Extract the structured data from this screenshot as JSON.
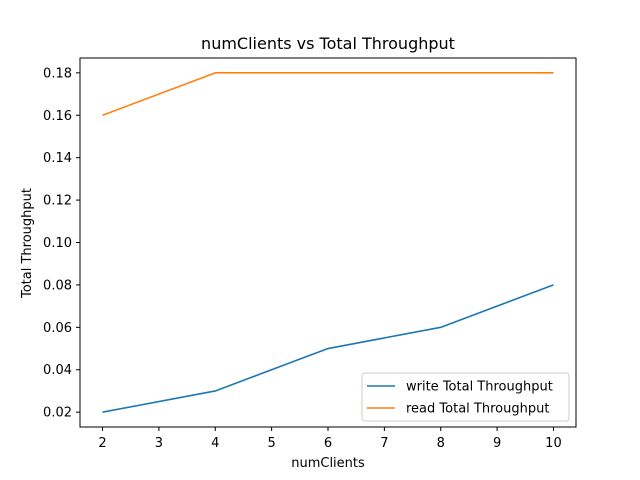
{
  "chart_data": {
    "type": "line",
    "title": "numClients vs Total Throughput",
    "xlabel": "numClients",
    "ylabel": "Total Throughput",
    "x": [
      2,
      4,
      6,
      8,
      10
    ],
    "xlim": [
      1.6,
      10.4
    ],
    "ylim": [
      0.013,
      0.187
    ],
    "xticks": [
      2,
      3,
      4,
      5,
      6,
      7,
      8,
      9,
      10
    ],
    "yticks": [
      "0.02",
      "0.04",
      "0.06",
      "0.08",
      "0.10",
      "0.12",
      "0.14",
      "0.16",
      "0.18"
    ],
    "grid": false,
    "legend_position": "bottom-right",
    "series": [
      {
        "name": "write Total Throughput",
        "color": "#1f77b4",
        "values": [
          0.02,
          0.03,
          0.05,
          0.06,
          0.08
        ]
      },
      {
        "name": "read Total Throughput",
        "color": "#ff7f0e",
        "values": [
          0.16,
          0.18,
          0.18,
          0.18,
          0.18
        ]
      }
    ]
  }
}
